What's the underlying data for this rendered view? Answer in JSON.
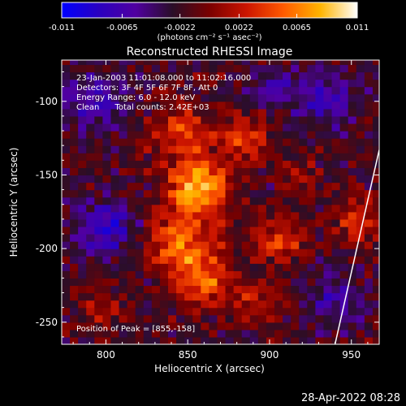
{
  "chart_data": {
    "type": "heatmap",
    "title": "Reconstructed RHESSI Image",
    "xlabel": "Heliocentric X (arcsec)",
    "ylabel": "Heliocentric Y (arcsec)",
    "xlim": [
      773,
      967
    ],
    "ylim": [
      -265,
      -72
    ],
    "x_ticks": [
      800,
      850,
      900,
      950
    ],
    "y_ticks": [
      -100,
      -150,
      -200,
      -250
    ],
    "colorbar": {
      "ticks": [
        "-0.011",
        "-0.0065",
        "-0.0022",
        "0.0022",
        "0.0065",
        "0.011"
      ],
      "range": [
        -0.011,
        0.011
      ],
      "units_label": "(photons cm⁻² s⁻¹ asec⁻²)",
      "colormap": [
        "#0000ff",
        "#2a00c0",
        "#5000a0",
        "#2a0e28",
        "#7a0000",
        "#cc1500",
        "#ff5a00",
        "#ffb400",
        "#ffffff"
      ]
    },
    "annotations": [
      "23-Jan-2003 11:01:08.000 to 11:02:16.000",
      "Detectors: 3F 4F 5F 6F 7F 8F, Att 0",
      "Energy Range: 6.0 - 12.0 keV",
      "Clean      Total counts: 2.42E+03"
    ],
    "peak_label": "Position of Peak = [855,-158]",
    "peak": [
      855,
      -158
    ],
    "limb_line": [
      [
        967,
        -133
      ],
      [
        940,
        -265
      ]
    ],
    "emission_sources": [
      {
        "x": 857,
        "y": -158,
        "intensity": 0.011,
        "sigma": 13
      },
      {
        "x": 845,
        "y": -195,
        "intensity": 0.0075,
        "sigma": 14
      },
      {
        "x": 860,
        "y": -222,
        "intensity": 0.0068,
        "sigma": 13
      },
      {
        "x": 845,
        "y": -120,
        "intensity": 0.006,
        "sigma": 12
      },
      {
        "x": 885,
        "y": -125,
        "intensity": 0.0055,
        "sigma": 11
      },
      {
        "x": 905,
        "y": -195,
        "intensity": 0.0055,
        "sigma": 10
      },
      {
        "x": 955,
        "y": -180,
        "intensity": 0.0045,
        "sigma": 11
      },
      {
        "x": 895,
        "y": -235,
        "intensity": 0.0035,
        "sigma": 10
      },
      {
        "x": 795,
        "y": -240,
        "intensity": 0.003,
        "sigma": 9
      },
      {
        "x": 920,
        "y": -150,
        "intensity": 0.0025,
        "sigma": 8
      }
    ],
    "negative_regions": [
      {
        "x": 790,
        "y": -100,
        "intensity": -0.005,
        "sigma": 14
      },
      {
        "x": 800,
        "y": -185,
        "intensity": -0.006,
        "sigma": 14
      },
      {
        "x": 935,
        "y": -100,
        "intensity": -0.005,
        "sigma": 13
      },
      {
        "x": 940,
        "y": -235,
        "intensity": -0.0045,
        "sigma": 12
      },
      {
        "x": 905,
        "y": -90,
        "intensity": -0.004,
        "sigma": 10
      }
    ]
  },
  "footer": {
    "timestamp": "28-Apr-2022 08:28"
  }
}
